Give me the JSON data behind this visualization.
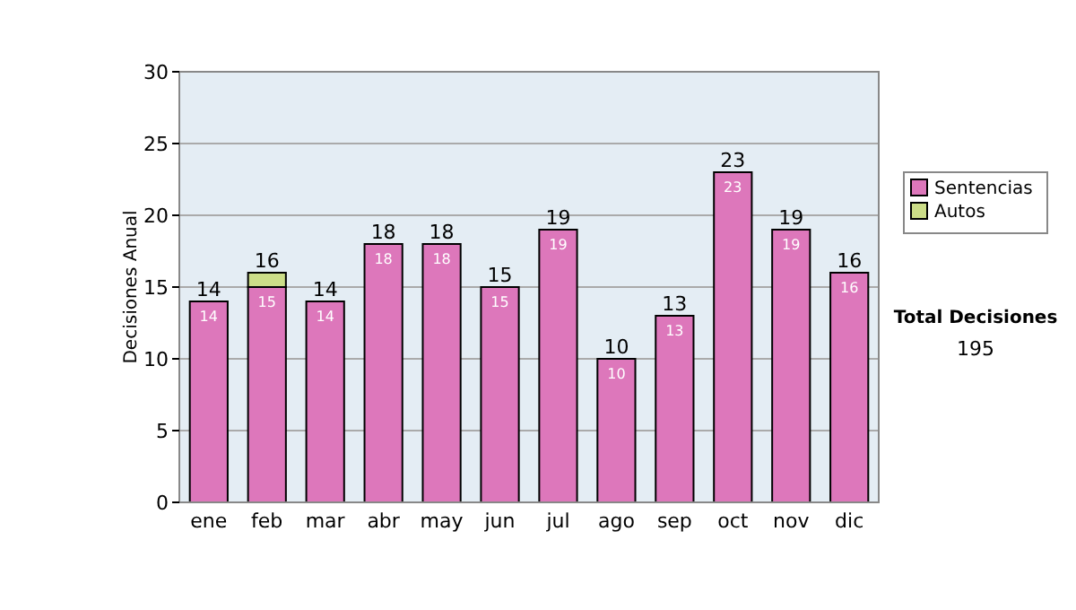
{
  "chart_data": {
    "type": "bar",
    "ylabel": "Decisiones Anual",
    "categories": [
      "ene",
      "feb",
      "mar",
      "abr",
      "may",
      "jun",
      "jul",
      "ago",
      "sep",
      "oct",
      "nov",
      "dic"
    ],
    "stacked": true,
    "series": [
      {
        "name": "Sentencias",
        "color": "#dd77bb",
        "values": [
          14,
          15,
          14,
          18,
          18,
          15,
          19,
          10,
          13,
          23,
          19,
          16
        ],
        "value_labels": [
          "14",
          "15",
          "14",
          "18",
          "18",
          "15",
          "19",
          "10",
          "13",
          "23",
          "19",
          "16"
        ]
      },
      {
        "name": "Autos",
        "color": "#ccdd88",
        "values": [
          0,
          1,
          0,
          0,
          0,
          0,
          0,
          0,
          0,
          0,
          0,
          0
        ]
      }
    ],
    "totals": [
      "14",
      "16",
      "14",
      "18",
      "18",
      "15",
      "19",
      "10",
      "13",
      "23",
      "19",
      "16"
    ],
    "ylim": [
      0,
      30
    ],
    "yticks": [
      0,
      5,
      10,
      15,
      20,
      25,
      30
    ],
    "grid": "y",
    "legend": "right",
    "annotations": [
      "Total Decisiones",
      "195"
    ]
  }
}
